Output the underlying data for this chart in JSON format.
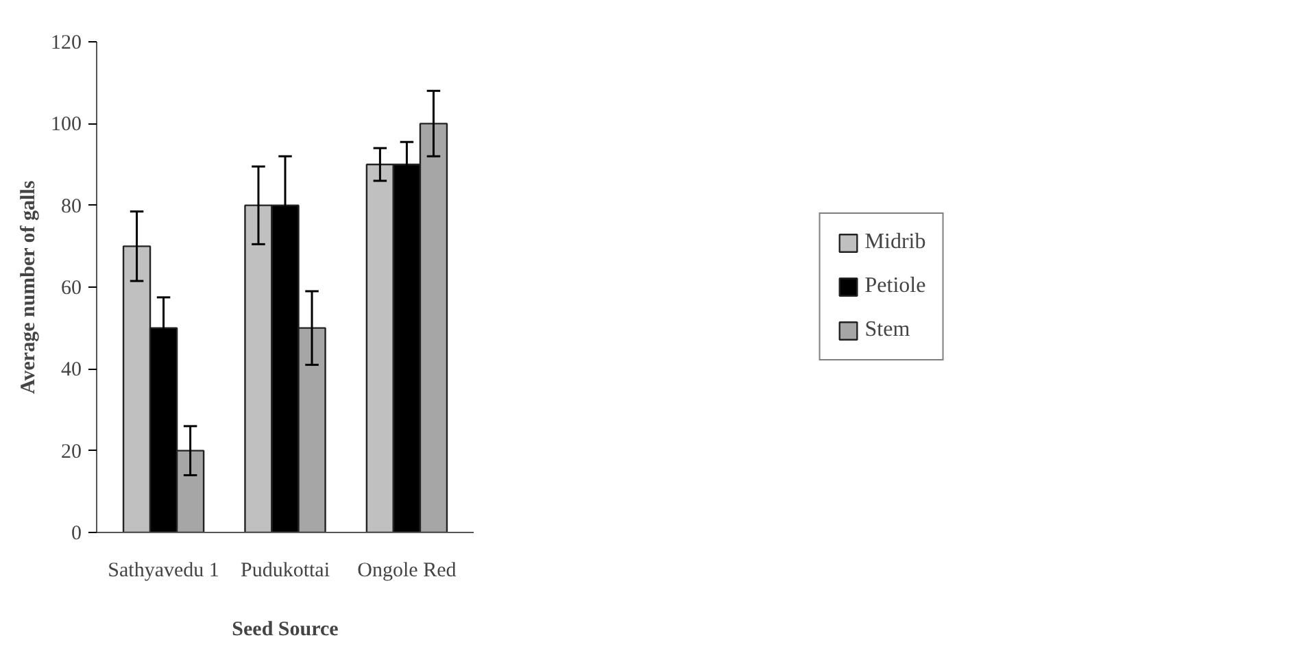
{
  "chart_data": {
    "type": "bar",
    "xlabel": "Seed Source",
    "ylabel": "Average number of galls",
    "categories": [
      "Sathyavedu 1",
      "Pudukottai",
      "Ongole Red"
    ],
    "series": [
      {
        "name": "Midrib",
        "color": "#c0c0c0",
        "values": [
          70,
          80,
          90
        ],
        "errors": [
          8.5,
          9.5,
          4
        ]
      },
      {
        "name": "Petiole",
        "color": "#000000",
        "values": [
          50,
          80,
          90
        ],
        "errors": [
          7.5,
          12,
          5.5
        ]
      },
      {
        "name": "Stem",
        "color": "#a6a6a6",
        "values": [
          20,
          50,
          100
        ],
        "errors": [
          6,
          9,
          8
        ]
      }
    ],
    "ylim": [
      0,
      120
    ],
    "yticks": [
      0,
      20,
      40,
      60,
      80,
      100,
      120
    ],
    "grid": false,
    "legend": "right"
  }
}
